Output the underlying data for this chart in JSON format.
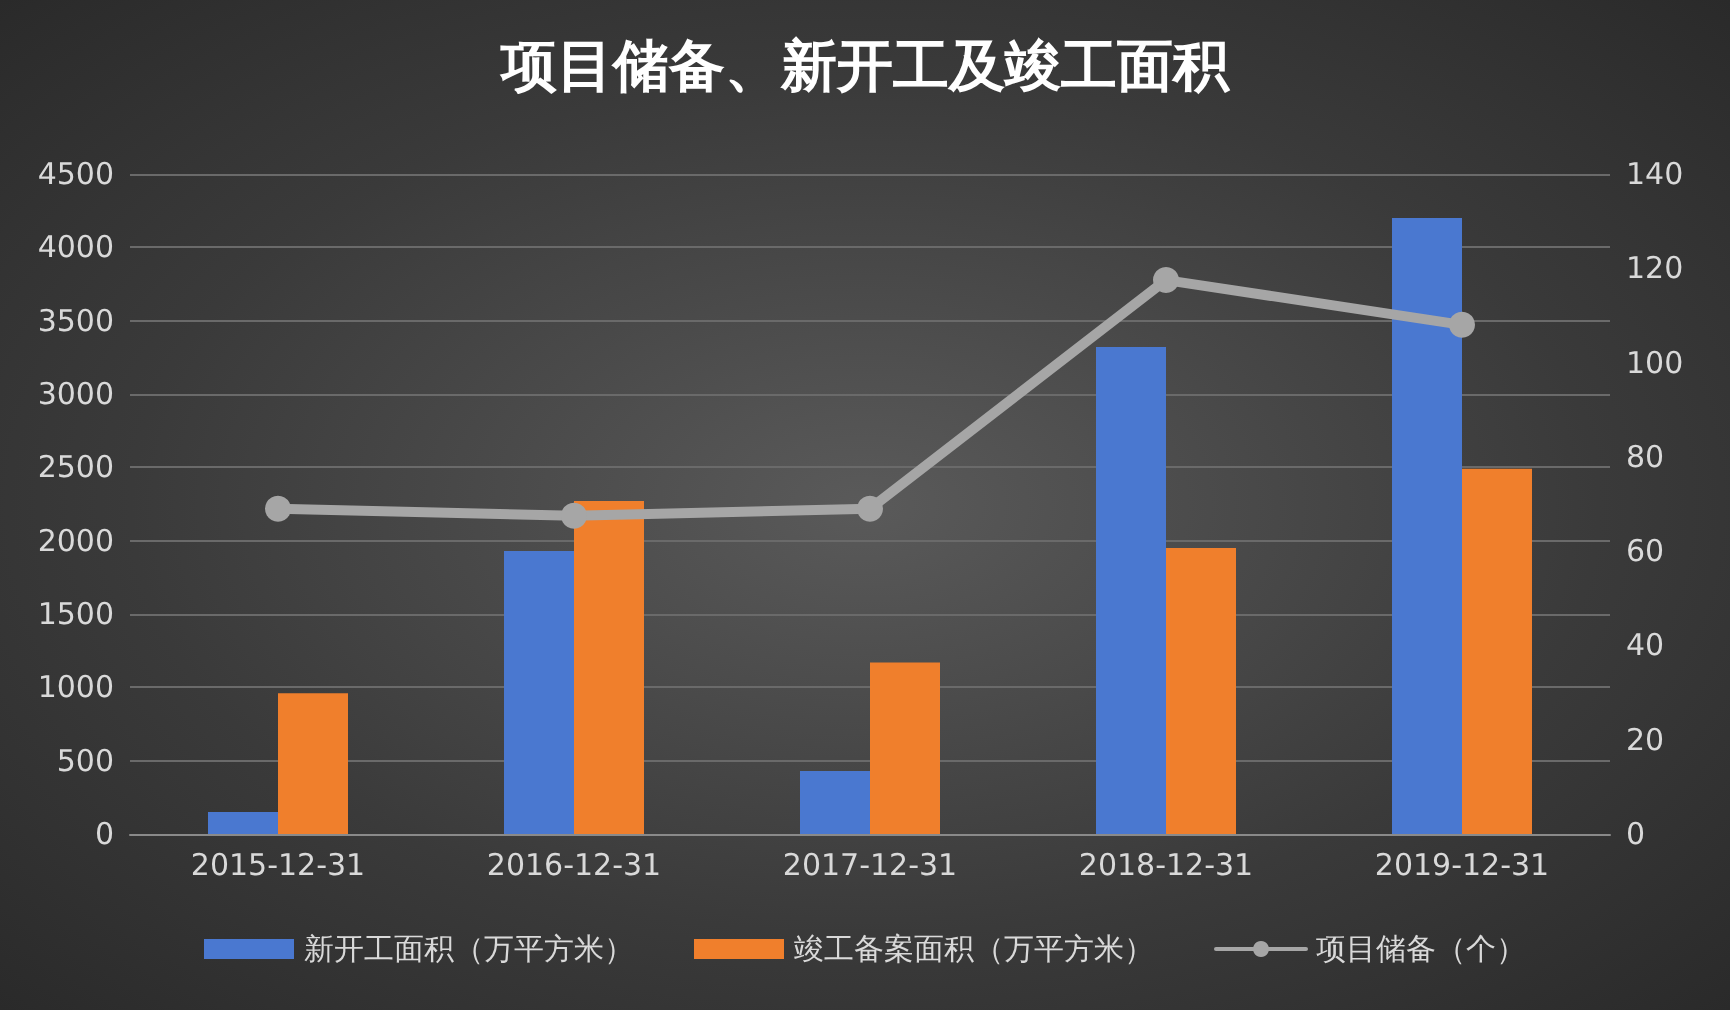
{
  "chart_data": {
    "type": "bar",
    "title": "项目储备、新开工及竣工面积",
    "categories": [
      "2015-12-31",
      "2016-12-31",
      "2017-12-31",
      "2018-12-31",
      "2019-12-31"
    ],
    "series": [
      {
        "name": "新开工面积（万平方米）",
        "color": "#4a78d0",
        "values": [
          150,
          1930,
          430,
          3320,
          4200
        ]
      },
      {
        "name": "竣工备案面积（万平方米）",
        "color": "#f07f2c",
        "values": [
          960,
          2270,
          1170,
          1950,
          2490
        ]
      },
      {
        "name": "项目储备（个）",
        "type": "line",
        "axis": "y2",
        "color": "#a6a6a6",
        "values": [
          69,
          67.5,
          69,
          117.5,
          108
        ]
      }
    ],
    "ylim": [
      0,
      4500
    ],
    "yticks": [
      0,
      500,
      1000,
      1500,
      2000,
      2500,
      3000,
      3500,
      4000,
      4500
    ],
    "y2lim": [
      0,
      140
    ],
    "y2ticks": [
      0,
      20,
      40,
      60,
      80,
      100,
      120,
      140
    ],
    "grid": "y",
    "legend": "bottom",
    "marker": "circle",
    "line_style": "solid"
  }
}
